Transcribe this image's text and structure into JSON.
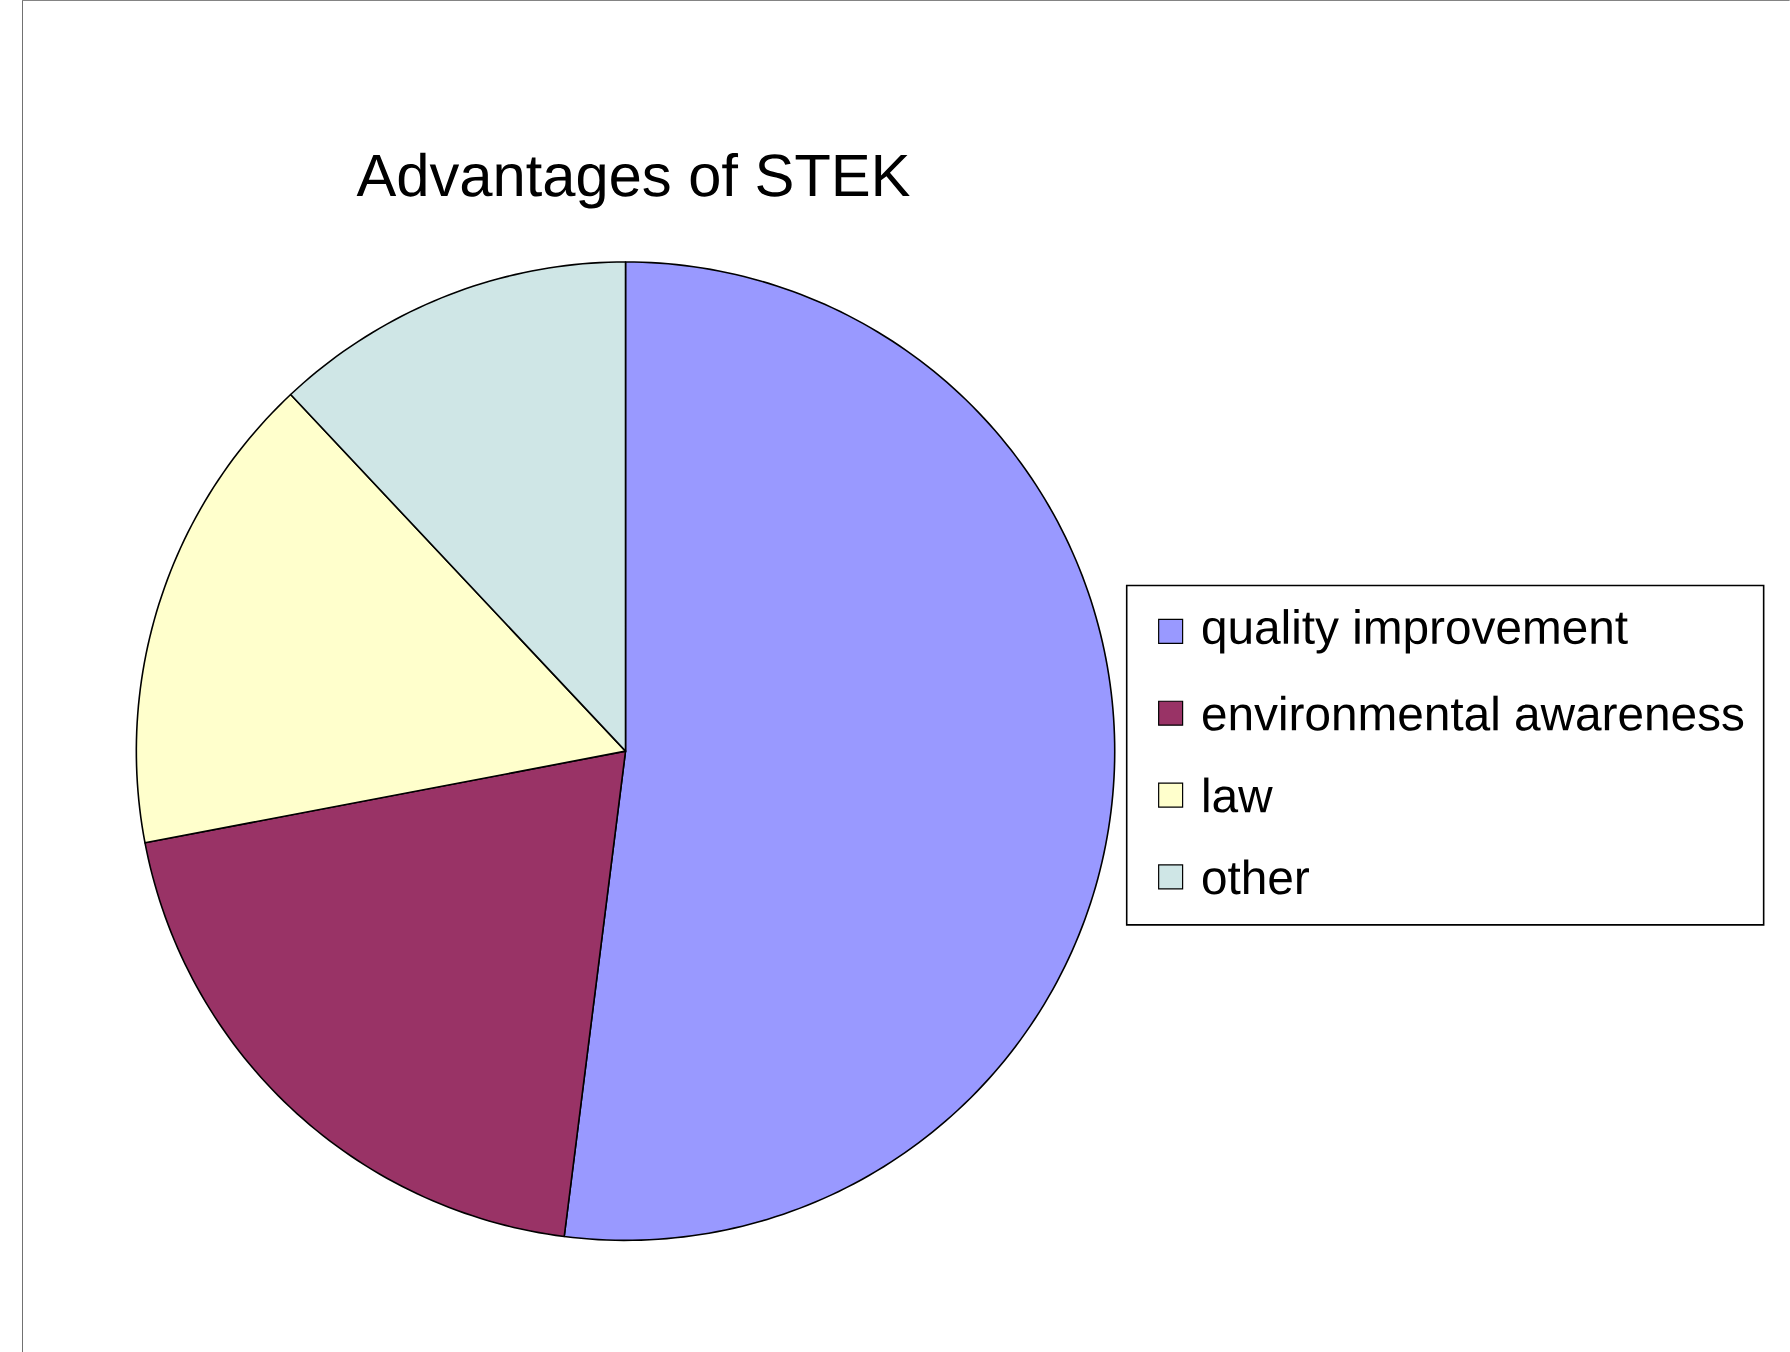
{
  "chart_data": {
    "type": "pie",
    "title": "Advantages of STEK",
    "categories": [
      "quality improvement",
      "environmental awareness",
      "law",
      "other"
    ],
    "values": [
      52,
      20,
      16,
      12
    ],
    "colors": [
      "#9999ff",
      "#993366",
      "#ffffcc",
      "#cfe6e6"
    ],
    "legend": "right"
  }
}
